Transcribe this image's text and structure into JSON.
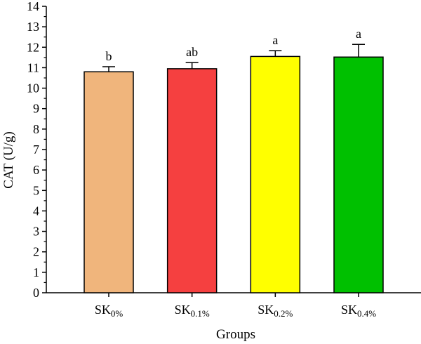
{
  "chart_data": {
    "type": "bar",
    "title": "",
    "xlabel": "Groups",
    "ylabel": "CAT (U/g)",
    "ylim": [
      0,
      14
    ],
    "yticks": [
      0,
      1,
      2,
      3,
      4,
      5,
      6,
      7,
      8,
      9,
      10,
      11,
      12,
      13,
      14
    ],
    "categories": [
      {
        "base": "SK",
        "sub": "0%"
      },
      {
        "base": "SK",
        "sub": "0.1%"
      },
      {
        "base": "SK",
        "sub": "0.2%"
      },
      {
        "base": "SK",
        "sub": "0.4%"
      }
    ],
    "values": [
      10.8,
      10.95,
      11.55,
      11.52
    ],
    "errors": [
      0.25,
      0.3,
      0.28,
      0.62
    ],
    "letters": [
      "b",
      "ab",
      "a",
      "a"
    ],
    "colors": [
      "#F0B57C",
      "#F54040",
      "#FFFF00",
      "#00C000"
    ],
    "grid": false,
    "legend": "none"
  }
}
